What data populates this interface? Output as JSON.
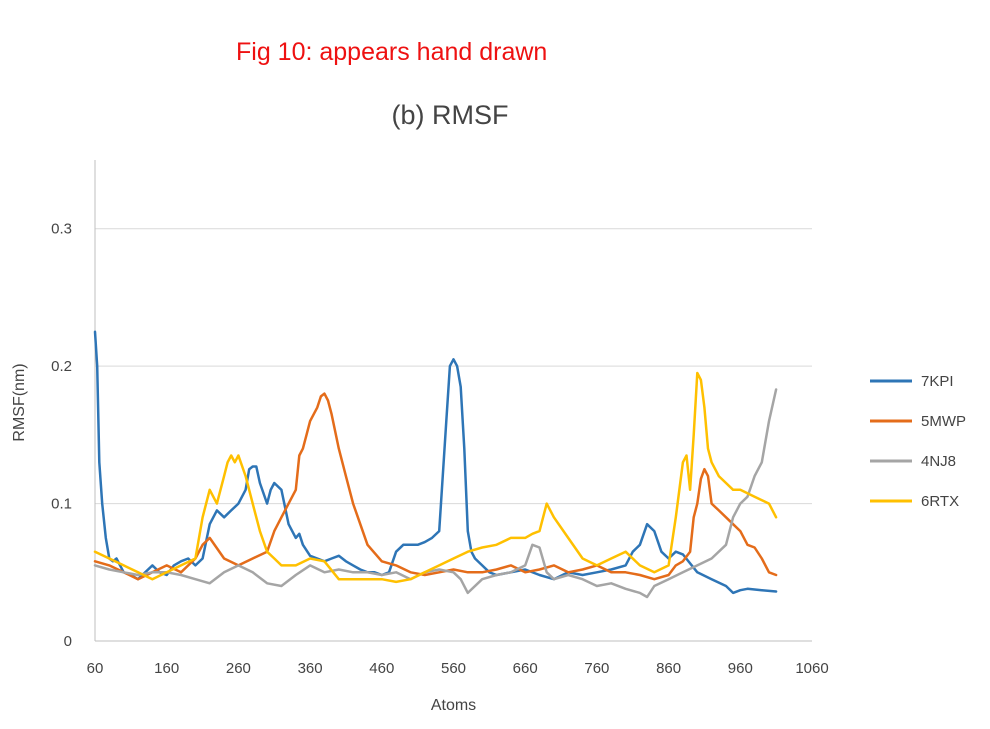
{
  "note": "Fig 10: appears hand drawn",
  "colors": {
    "note": "#ee1111",
    "grid": "#d9d9d9",
    "axis": "#bfbfbf",
    "text": "#444444"
  },
  "chart_data": {
    "type": "line",
    "title": "(b) RMSF",
    "xlabel": "Atoms",
    "ylabel": "RMSF(nm)",
    "xlim": [
      60,
      1060
    ],
    "ylim": [
      0,
      0.35
    ],
    "xticks": [
      60,
      160,
      260,
      360,
      460,
      560,
      660,
      760,
      860,
      960,
      1060
    ],
    "yticks": [
      0,
      0.1,
      0.2,
      0.3
    ],
    "ytick_labels": [
      "0",
      "0.1",
      "0.2",
      "0.3"
    ],
    "grid": true,
    "legend_position": "right",
    "series": [
      {
        "name": "7KPI",
        "color": "#2e75b6",
        "x": [
          60,
          63,
          66,
          70,
          75,
          80,
          85,
          90,
          95,
          100,
          110,
          120,
          130,
          140,
          150,
          160,
          170,
          180,
          190,
          200,
          210,
          220,
          230,
          240,
          250,
          260,
          270,
          275,
          280,
          285,
          290,
          300,
          305,
          310,
          320,
          330,
          340,
          345,
          350,
          360,
          370,
          380,
          390,
          400,
          410,
          420,
          430,
          440,
          450,
          460,
          470,
          480,
          490,
          500,
          510,
          520,
          530,
          540,
          550,
          555,
          560,
          565,
          570,
          575,
          580,
          585,
          590,
          600,
          610,
          620,
          640,
          660,
          680,
          700,
          720,
          740,
          760,
          780,
          800,
          810,
          820,
          830,
          840,
          850,
          860,
          870,
          880,
          900,
          920,
          940,
          950,
          960,
          970,
          990,
          1010
        ],
        "values": [
          0.225,
          0.2,
          0.13,
          0.1,
          0.075,
          0.06,
          0.058,
          0.06,
          0.055,
          0.05,
          0.048,
          0.045,
          0.05,
          0.055,
          0.05,
          0.048,
          0.055,
          0.058,
          0.06,
          0.055,
          0.06,
          0.085,
          0.095,
          0.09,
          0.095,
          0.1,
          0.11,
          0.125,
          0.127,
          0.127,
          0.115,
          0.1,
          0.11,
          0.115,
          0.11,
          0.085,
          0.075,
          0.078,
          0.07,
          0.062,
          0.06,
          0.058,
          0.06,
          0.062,
          0.058,
          0.055,
          0.052,
          0.05,
          0.05,
          0.048,
          0.05,
          0.065,
          0.07,
          0.07,
          0.07,
          0.072,
          0.075,
          0.08,
          0.16,
          0.2,
          0.205,
          0.2,
          0.185,
          0.14,
          0.08,
          0.065,
          0.06,
          0.055,
          0.05,
          0.048,
          0.05,
          0.052,
          0.048,
          0.045,
          0.05,
          0.048,
          0.05,
          0.052,
          0.055,
          0.065,
          0.07,
          0.085,
          0.08,
          0.065,
          0.06,
          0.065,
          0.063,
          0.05,
          0.045,
          0.04,
          0.035,
          0.037,
          0.038,
          0.037,
          0.036
        ]
      },
      {
        "name": "5MWP",
        "color": "#e46c1a",
        "x": [
          60,
          80,
          100,
          120,
          140,
          160,
          180,
          200,
          210,
          220,
          240,
          260,
          280,
          300,
          310,
          320,
          330,
          340,
          345,
          350,
          355,
          360,
          370,
          375,
          380,
          385,
          390,
          400,
          410,
          420,
          430,
          440,
          460,
          480,
          500,
          520,
          540,
          560,
          580,
          600,
          620,
          640,
          660,
          680,
          700,
          720,
          740,
          760,
          780,
          800,
          820,
          840,
          860,
          870,
          880,
          890,
          895,
          900,
          905,
          910,
          915,
          920,
          930,
          940,
          950,
          960,
          970,
          980,
          990,
          1000,
          1010
        ],
        "values": [
          0.058,
          0.055,
          0.05,
          0.045,
          0.05,
          0.055,
          0.05,
          0.06,
          0.07,
          0.075,
          0.06,
          0.055,
          0.06,
          0.065,
          0.08,
          0.09,
          0.1,
          0.11,
          0.135,
          0.14,
          0.15,
          0.16,
          0.17,
          0.178,
          0.18,
          0.175,
          0.165,
          0.14,
          0.12,
          0.1,
          0.085,
          0.07,
          0.058,
          0.055,
          0.05,
          0.048,
          0.05,
          0.052,
          0.05,
          0.05,
          0.052,
          0.055,
          0.05,
          0.052,
          0.055,
          0.05,
          0.052,
          0.055,
          0.05,
          0.05,
          0.048,
          0.045,
          0.048,
          0.055,
          0.058,
          0.065,
          0.09,
          0.1,
          0.118,
          0.125,
          0.12,
          0.1,
          0.095,
          0.09,
          0.085,
          0.08,
          0.07,
          0.068,
          0.06,
          0.05,
          0.048
        ]
      },
      {
        "name": "4NJ8",
        "color": "#a5a5a5",
        "x": [
          60,
          80,
          100,
          120,
          140,
          160,
          180,
          200,
          220,
          240,
          260,
          280,
          300,
          320,
          340,
          360,
          380,
          400,
          420,
          440,
          460,
          480,
          500,
          520,
          540,
          560,
          570,
          580,
          600,
          620,
          640,
          660,
          670,
          680,
          690,
          700,
          720,
          740,
          760,
          780,
          800,
          820,
          830,
          840,
          860,
          880,
          900,
          920,
          940,
          950,
          960,
          970,
          980,
          990,
          1000,
          1010
        ],
        "values": [
          0.055,
          0.052,
          0.05,
          0.048,
          0.05,
          0.05,
          0.048,
          0.045,
          0.042,
          0.05,
          0.055,
          0.05,
          0.042,
          0.04,
          0.048,
          0.055,
          0.05,
          0.052,
          0.05,
          0.05,
          0.048,
          0.05,
          0.045,
          0.05,
          0.052,
          0.05,
          0.045,
          0.035,
          0.045,
          0.048,
          0.05,
          0.055,
          0.07,
          0.068,
          0.05,
          0.045,
          0.048,
          0.045,
          0.04,
          0.042,
          0.038,
          0.035,
          0.032,
          0.04,
          0.045,
          0.05,
          0.055,
          0.06,
          0.07,
          0.09,
          0.1,
          0.105,
          0.12,
          0.13,
          0.16,
          0.183
        ]
      },
      {
        "name": "6RTX",
        "color": "#ffc000",
        "x": [
          60,
          80,
          100,
          120,
          140,
          160,
          180,
          200,
          210,
          220,
          230,
          240,
          245,
          250,
          255,
          260,
          270,
          280,
          290,
          300,
          310,
          320,
          340,
          360,
          380,
          400,
          420,
          440,
          460,
          480,
          500,
          520,
          540,
          560,
          580,
          600,
          620,
          640,
          660,
          670,
          680,
          690,
          700,
          720,
          740,
          760,
          780,
          800,
          820,
          840,
          860,
          870,
          880,
          885,
          890,
          895,
          900,
          905,
          910,
          915,
          920,
          930,
          940,
          950,
          960,
          980,
          1000,
          1010
        ],
        "values": [
          0.065,
          0.06,
          0.055,
          0.05,
          0.045,
          0.05,
          0.055,
          0.06,
          0.09,
          0.11,
          0.1,
          0.12,
          0.13,
          0.135,
          0.13,
          0.135,
          0.12,
          0.1,
          0.08,
          0.065,
          0.06,
          0.055,
          0.055,
          0.06,
          0.058,
          0.045,
          0.045,
          0.045,
          0.045,
          0.043,
          0.045,
          0.05,
          0.055,
          0.06,
          0.065,
          0.068,
          0.07,
          0.075,
          0.075,
          0.078,
          0.08,
          0.1,
          0.09,
          0.075,
          0.06,
          0.055,
          0.06,
          0.065,
          0.055,
          0.05,
          0.055,
          0.09,
          0.13,
          0.135,
          0.11,
          0.15,
          0.195,
          0.19,
          0.17,
          0.14,
          0.13,
          0.12,
          0.115,
          0.11,
          0.11,
          0.105,
          0.1,
          0.09
        ]
      }
    ]
  }
}
